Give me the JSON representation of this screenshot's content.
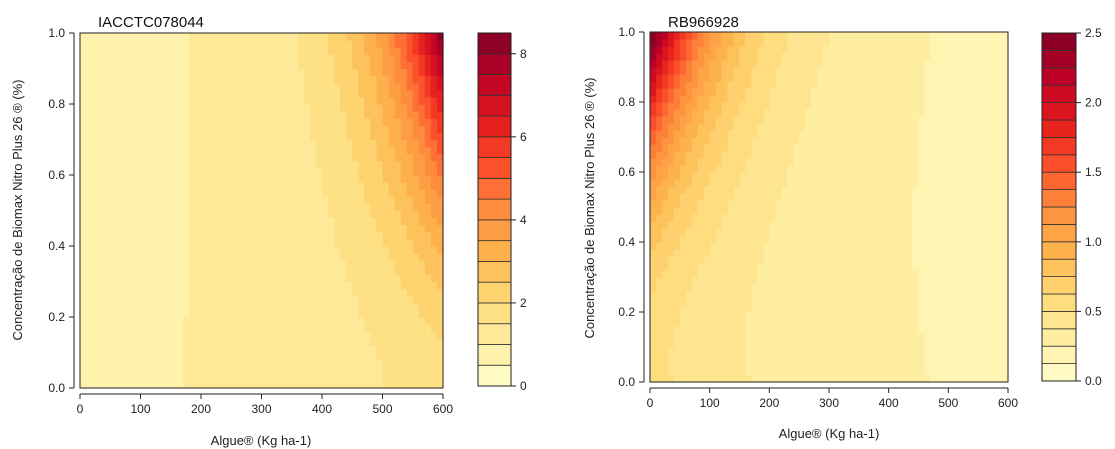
{
  "chart_data": [
    {
      "type": "heatmap",
      "subtype": "filled-contour",
      "title": "IACCTC078044",
      "xlabel": "Algue® (Kg ha-1)",
      "ylabel": "Concentração de Biomax Nitro Plus 26 ® (%)",
      "xlim": [
        0,
        600
      ],
      "ylim": [
        0,
        1.0
      ],
      "x_ticks": [
        "0",
        "100",
        "200",
        "300",
        "400",
        "500",
        "600"
      ],
      "y_ticks": [
        "0.0",
        "0.2",
        "0.4",
        "0.6",
        "0.8",
        "1.0"
      ],
      "colorbar": {
        "min": 0,
        "max": 8.5,
        "levels": 17,
        "ticks": [
          "0",
          "2",
          "4",
          "6",
          "8"
        ],
        "tick_values": [
          0,
          2,
          4,
          6,
          8
        ]
      },
      "surface": "high values concentrated at x near 600 and y near 1.0 (max ~8.5); near 0-1 elsewhere; moderate band x 400-600"
    },
    {
      "type": "heatmap",
      "subtype": "filled-contour",
      "title": "RB966928",
      "xlabel": "Algue® (Kg ha-1)",
      "ylabel": "Concentração de Biomax Nitro Plus 26 ® (%)",
      "xlim": [
        0,
        600
      ],
      "ylim": [
        0,
        1.0
      ],
      "x_ticks": [
        "0",
        "100",
        "200",
        "300",
        "400",
        "500",
        "600"
      ],
      "y_ticks": [
        "0.0",
        "0.2",
        "0.4",
        "0.6",
        "0.8",
        "1.0"
      ],
      "colorbar": {
        "min": 0,
        "max": 2.5,
        "levels": 20,
        "ticks": [
          "0.0",
          "0.5",
          "1.0",
          "1.5",
          "2.0",
          "2.5"
        ],
        "tick_values": [
          0,
          0.5,
          1.0,
          1.5,
          2.0,
          2.5
        ]
      },
      "surface": "high values concentrated at x near 0 and y near 1.0 (max ~2.5); moderate band x 0-200; low elsewhere"
    }
  ],
  "palette": [
    "#FFFFCC",
    "#FFEDA0",
    "#FED976",
    "#FEB24C",
    "#FD8D3C",
    "#FC4E2A",
    "#E31A1C",
    "#BD0026",
    "#800026"
  ]
}
